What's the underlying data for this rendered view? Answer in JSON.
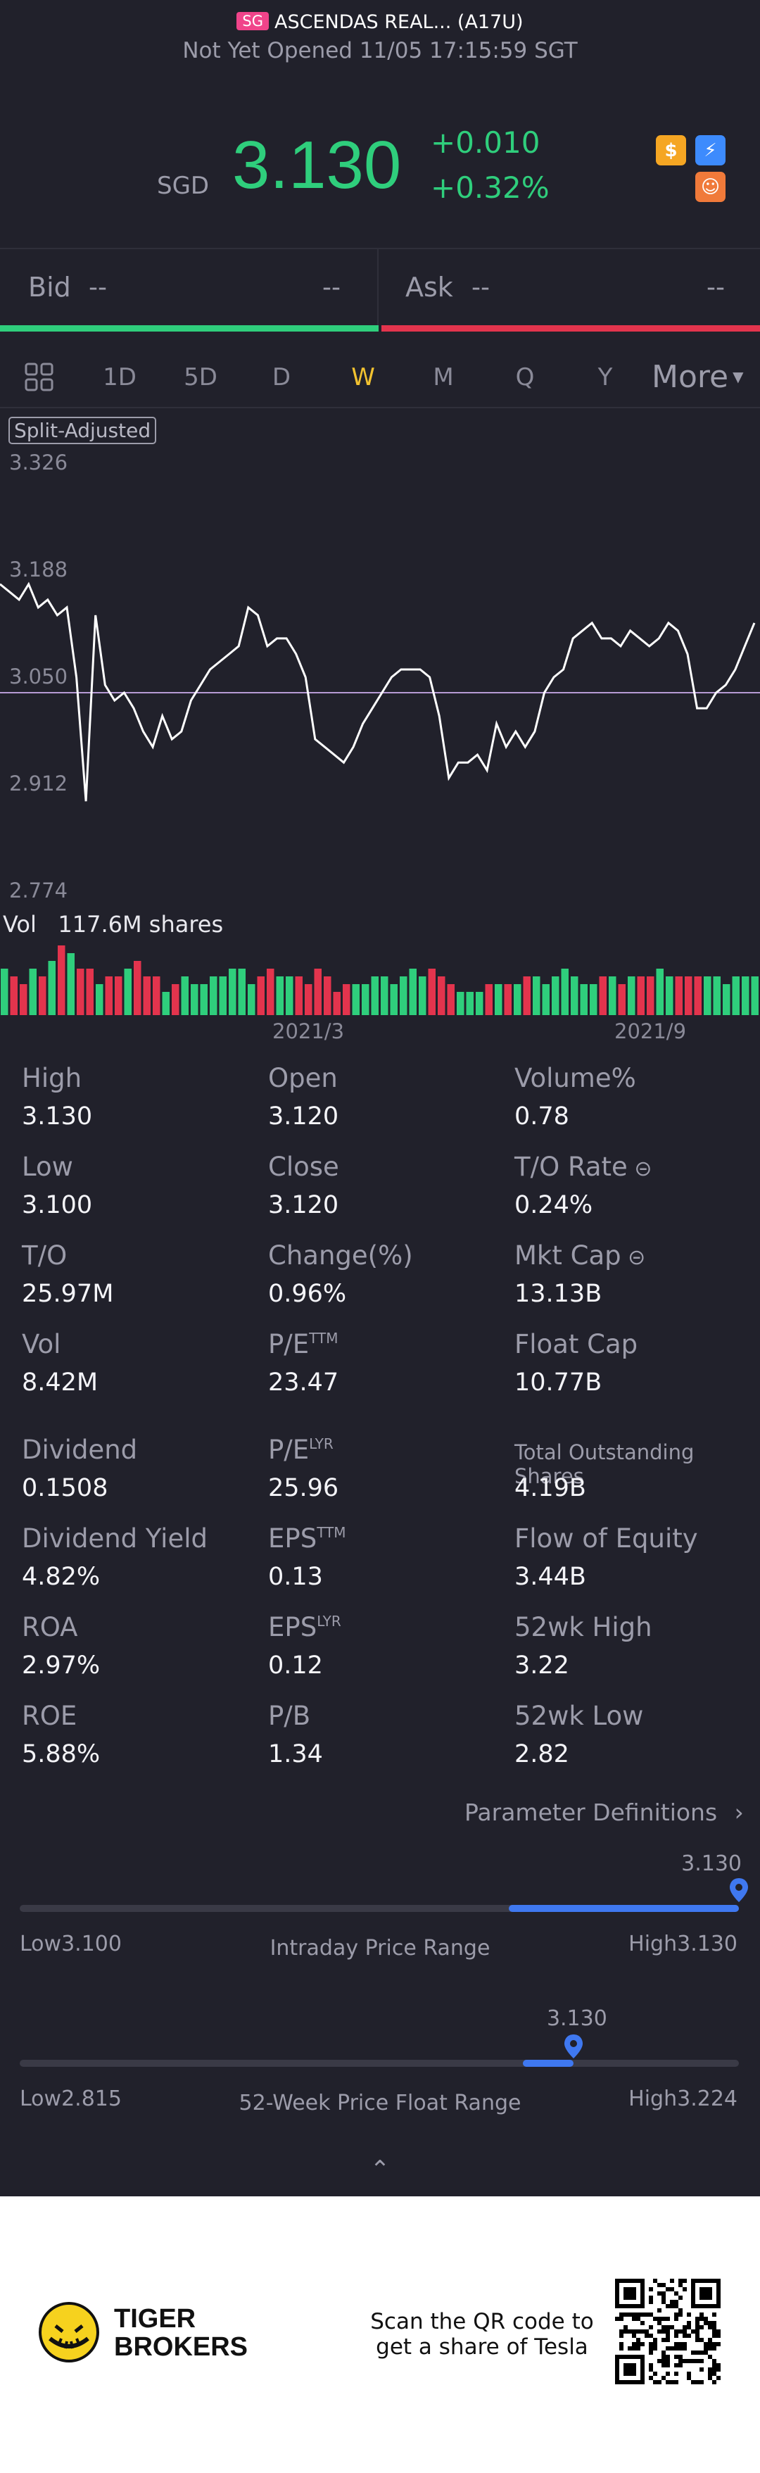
{
  "header": {
    "market_tag": "SG",
    "stock_name": "ASCENDAS REAL... (A17U)",
    "status": "Not Yet Opened 11/05 17:15:59 SGT"
  },
  "quote": {
    "currency": "SGD",
    "price": "3.130",
    "change": "+0.010",
    "change_pct": "+0.32%",
    "badges": [
      {
        "icon": "dollar-badge-icon",
        "glyph": "$",
        "color": "#f5a623"
      },
      {
        "icon": "flash-badge-icon",
        "glyph": "⚡",
        "color": "#3d8bfd"
      },
      {
        "icon": "tiger-badge-icon",
        "glyph": "☺",
        "color": "#f07a3a"
      }
    ]
  },
  "bid_ask": {
    "bid_label": "Bid",
    "bid_price": "--",
    "bid_size": "--",
    "ask_label": "Ask",
    "ask_price": "--",
    "ask_size": "--"
  },
  "tabs": {
    "items": [
      "1D",
      "5D",
      "D",
      "W",
      "M",
      "Q",
      "Y"
    ],
    "active": "W",
    "more_label": "More"
  },
  "chart": {
    "split_label": "Split-Adjusted",
    "y_labels": [
      "3.326",
      "3.188",
      "3.050",
      "2.912",
      "2.774"
    ],
    "vol_label": "Vol",
    "vol_value": "117.6M shares",
    "x_labels": [
      "2021/3",
      "2021/9"
    ]
  },
  "chart_data": {
    "type": "line",
    "title": "",
    "ylim": [
      2.774,
      3.326
    ],
    "reference_line": 3.03,
    "prices": [
      3.17,
      3.16,
      3.15,
      3.17,
      3.14,
      3.15,
      3.13,
      3.14,
      3.05,
      2.89,
      3.13,
      3.04,
      3.02,
      3.03,
      3.01,
      2.98,
      2.96,
      3.0,
      2.97,
      2.98,
      3.02,
      3.04,
      3.06,
      3.07,
      3.08,
      3.09,
      3.14,
      3.13,
      3.09,
      3.1,
      3.1,
      3.08,
      3.05,
      2.97,
      2.96,
      2.95,
      2.94,
      2.96,
      2.99,
      3.01,
      3.03,
      3.05,
      3.06,
      3.06,
      3.06,
      3.05,
      3.0,
      2.92,
      2.94,
      2.94,
      2.95,
      2.93,
      2.99,
      2.96,
      2.98,
      2.96,
      2.98,
      3.03,
      3.05,
      3.06,
      3.1,
      3.11,
      3.12,
      3.1,
      3.1,
      3.09,
      3.11,
      3.1,
      3.09,
      3.1,
      3.12,
      3.11,
      3.08,
      3.01,
      3.01,
      3.03,
      3.04,
      3.06,
      3.09,
      3.12
    ],
    "volume_series": {
      "name": "Vol",
      "values": [
        6,
        5,
        4,
        6,
        5,
        7,
        9,
        8,
        6,
        6,
        4,
        5,
        5,
        6,
        7,
        5,
        5,
        3,
        4,
        5,
        4,
        4,
        5,
        5,
        6,
        6,
        4,
        5,
        6,
        5,
        5,
        5,
        4,
        6,
        5,
        3,
        4,
        4,
        4,
        5,
        5,
        4,
        5,
        6,
        5,
        6,
        5,
        4,
        3,
        3,
        3,
        4,
        4,
        4,
        4,
        5,
        5,
        4,
        5,
        6,
        5,
        4,
        4,
        5,
        5,
        4,
        5,
        5,
        5,
        6,
        5,
        5,
        5,
        5,
        5,
        5,
        4,
        5,
        5,
        5
      ],
      "colors_up_down": [
        "red",
        "green"
      ]
    }
  },
  "stats": {
    "rows": [
      [
        {
          "label": "High",
          "value": "3.130"
        },
        {
          "label": "Open",
          "value": "3.120"
        },
        {
          "label": "Volume%",
          "value": "0.78"
        }
      ],
      [
        {
          "label": "Low",
          "value": "3.100"
        },
        {
          "label": "Close",
          "value": "3.120"
        },
        {
          "label": "T/O Rate",
          "value": "0.24%"
        }
      ],
      [
        {
          "label": "T/O",
          "value": "25.97M"
        },
        {
          "label": "Change(%)",
          "value": "0.96%"
        },
        {
          "label": "Mkt Cap",
          "value": "13.13B"
        }
      ],
      [
        {
          "label": "Vol",
          "value": "8.42M"
        },
        {
          "label": "P/E",
          "value": "23.47",
          "sup": "TTM"
        },
        {
          "label": "Float Cap",
          "value": "10.77B"
        }
      ],
      [
        {
          "label": "Dividend",
          "value": "0.1508"
        },
        {
          "label": "P/E",
          "value": "25.96",
          "sup": "LYR"
        },
        {
          "label": "Total Outstanding Shares",
          "value": "4.19B"
        }
      ],
      [
        {
          "label": "Dividend Yield",
          "value": "4.82%"
        },
        {
          "label": "EPS",
          "value": "0.13",
          "sup": "TTM"
        },
        {
          "label": "Flow of Equity",
          "value": "3.44B"
        }
      ],
      [
        {
          "label": "ROA",
          "value": "2.97%"
        },
        {
          "label": "EPS",
          "value": "0.12",
          "sup": "LYR"
        },
        {
          "label": "52wk High",
          "value": "3.22"
        }
      ],
      [
        {
          "label": "ROE",
          "value": "5.88%"
        },
        {
          "label": "P/B",
          "value": "1.34"
        },
        {
          "label": "52wk Low",
          "value": "2.82"
        }
      ]
    ],
    "param_defs": "Parameter Definitions"
  },
  "intraday_range": {
    "current": "3.130",
    "low_label": "Low3.100",
    "high_label": "High3.130",
    "title": "Intraday Price Range",
    "fill_start": 0.68,
    "position": 1.0
  },
  "week52_range": {
    "current": "3.130",
    "low_label": "Low2.815",
    "high_label": "High3.224",
    "title": "52-Week Price Float Range",
    "fill_start": 0.7,
    "position": 0.77
  },
  "footer": {
    "brand_line1": "TIGER",
    "brand_line2": "BROKERS",
    "scan_text": "Scan the QR code to get a share of Tesla"
  }
}
